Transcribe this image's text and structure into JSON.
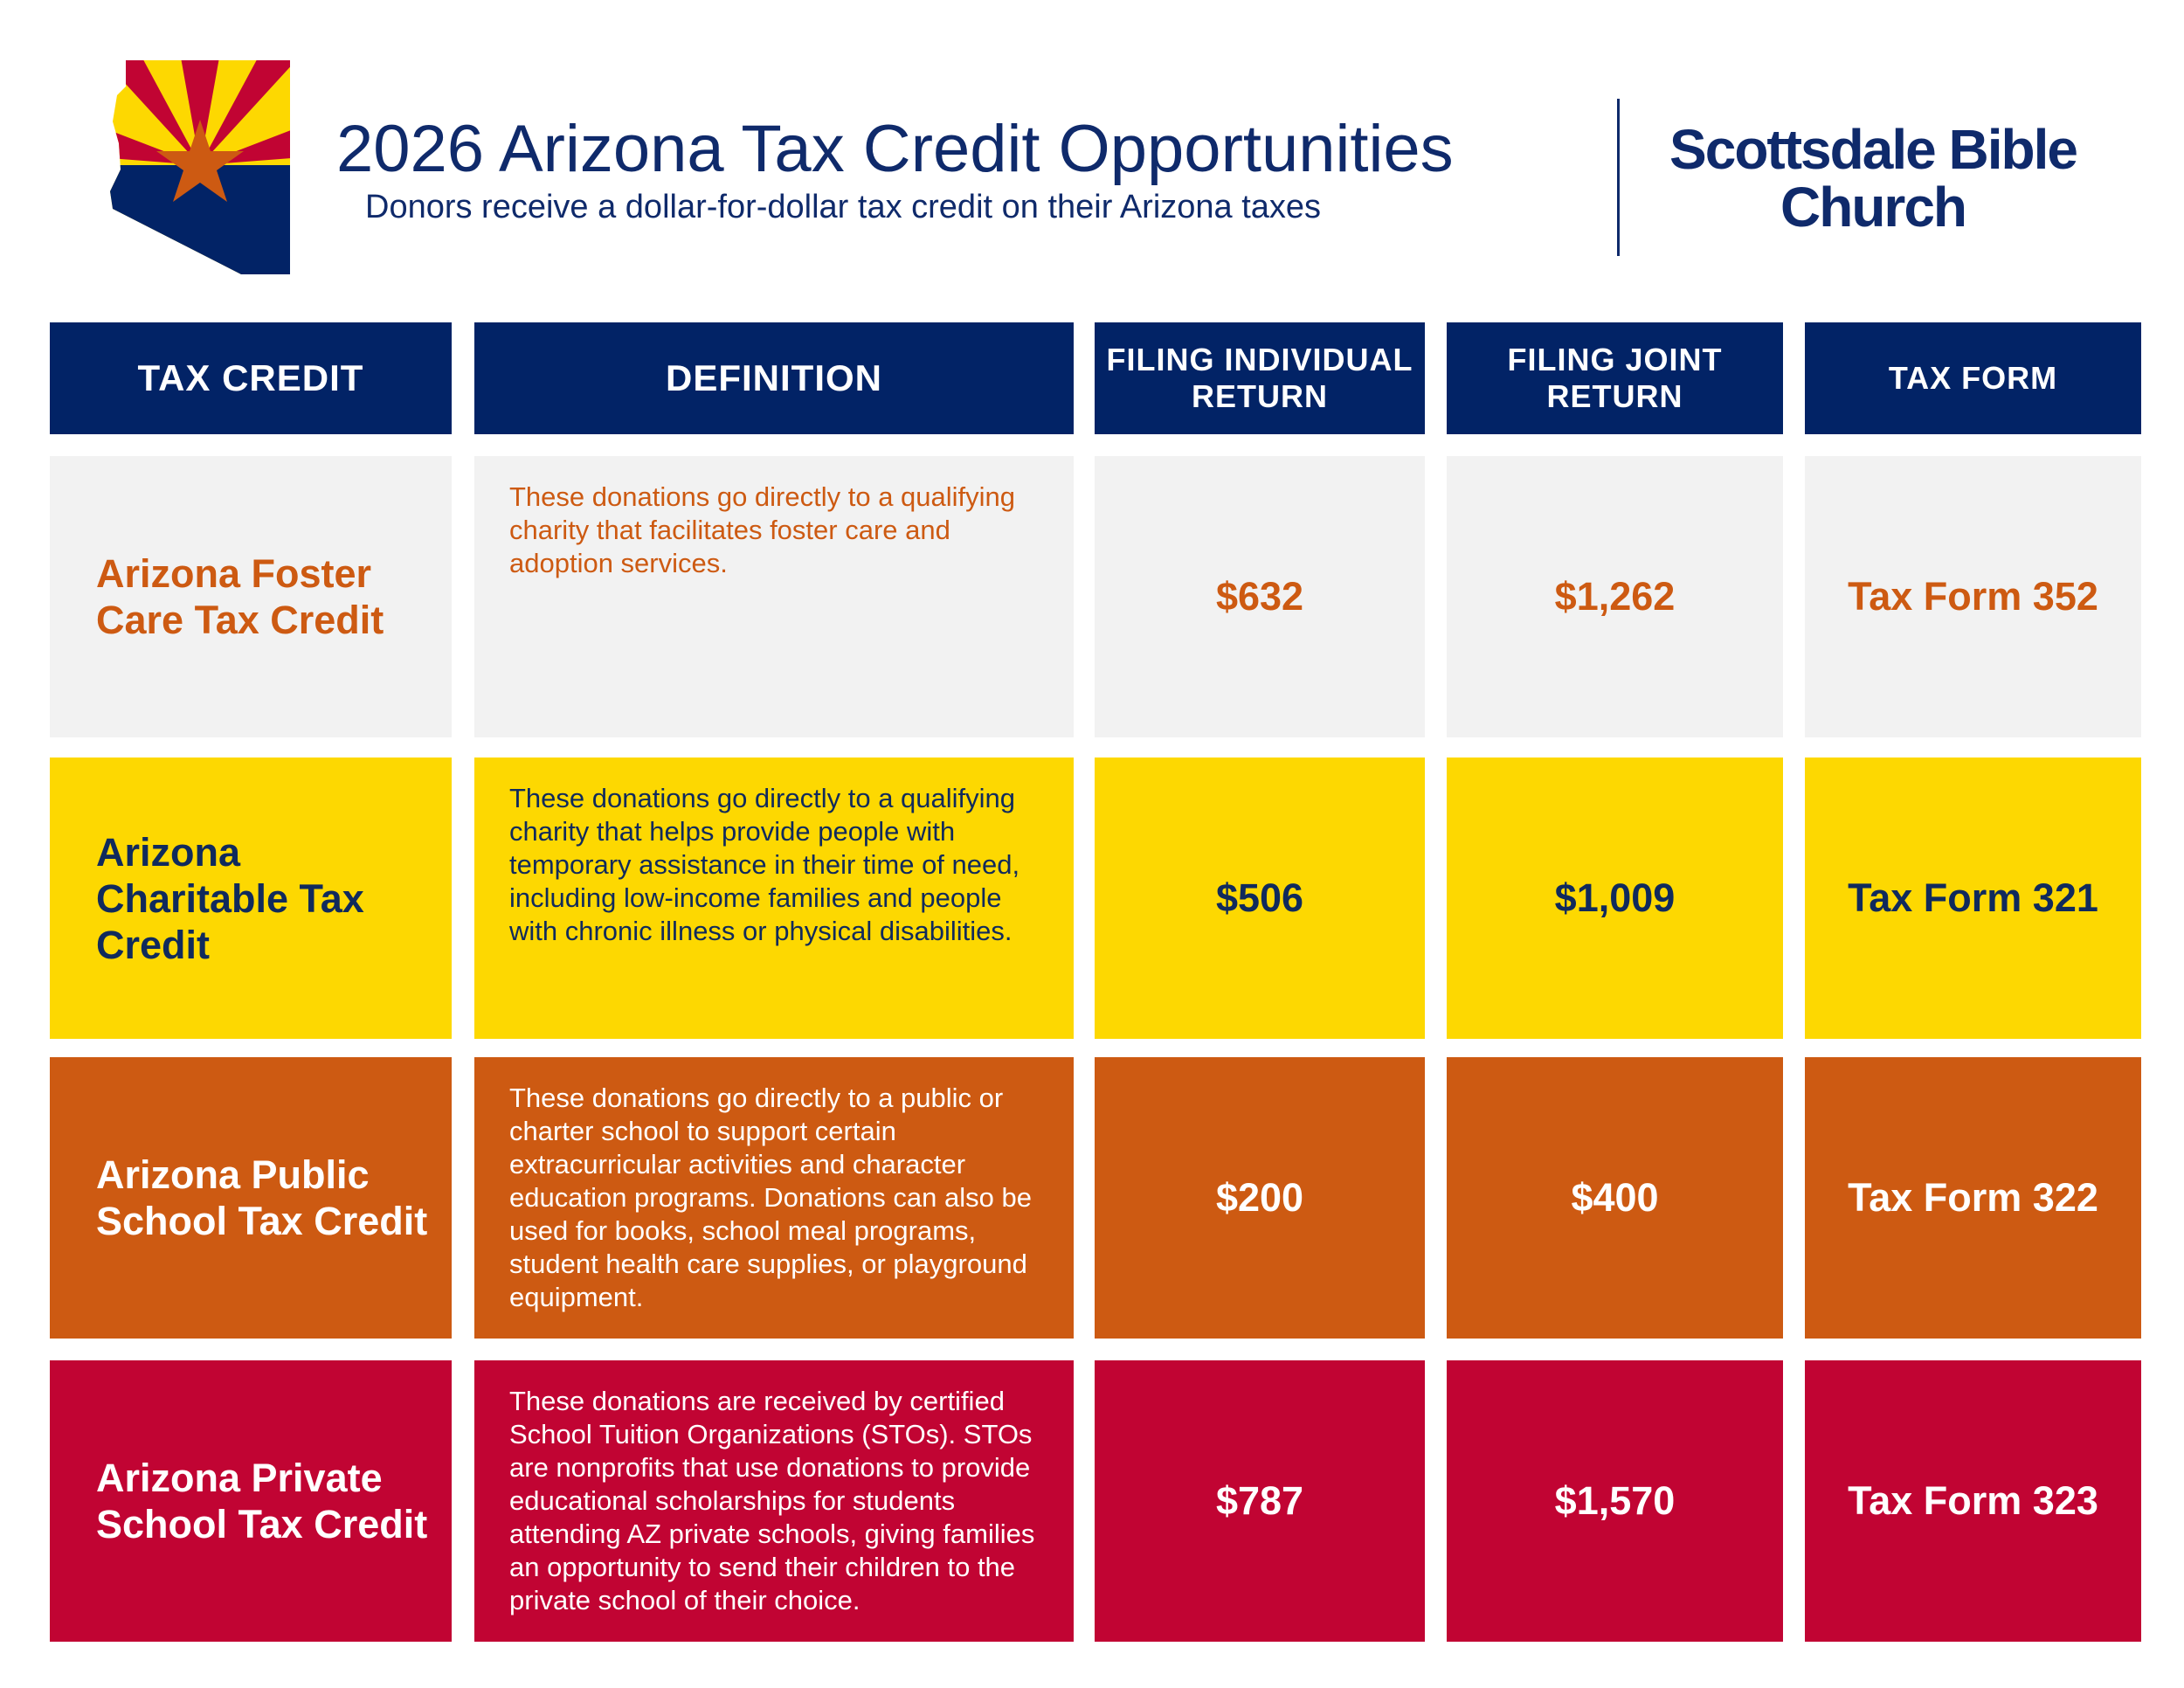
{
  "header": {
    "title": "2026 Arizona Tax Credit Opportunities",
    "subtitle": "Donors receive a dollar-for-dollar tax credit on their Arizona taxes",
    "logo_line1": "Scottsdale Bible",
    "logo_line2": "Church"
  },
  "colors": {
    "navy": "#022366",
    "gray": "#f2f2f2",
    "yellow": "#fdd801",
    "orange": "#cd5a12",
    "red": "#c10433"
  },
  "table": {
    "columns": [
      "TAX CREDIT",
      "DEFINITION",
      "FILING INDIVIDUAL RETURN",
      "FILING JOINT RETURN",
      "TAX FORM"
    ],
    "rows": [
      {
        "name": "Arizona Foster Care Tax Credit",
        "definition": "These donations go directly to a qualifying charity that facilitates foster care and adoption services.",
        "individual": "$632",
        "joint": "$1,262",
        "form": "Tax Form 352"
      },
      {
        "name": "Arizona Charitable Tax Credit",
        "definition": "These donations go directly to a qualifying charity that helps provide people with temporary assistance in their time of need, including low-income families and people with chronic illness or physical disabilities.",
        "individual": "$506",
        "joint": "$1,009",
        "form": "Tax Form 321"
      },
      {
        "name": "Arizona Public School Tax Credit",
        "definition": "These donations go directly to a public or charter school to support certain extracurricular activities and character education programs. Donations can also be used for books, school meal programs, student health care supplies, or playground equipment.",
        "individual": "$200",
        "joint": "$400",
        "form": "Tax Form 322"
      },
      {
        "name": "Arizona Private School Tax Credit",
        "definition": "These donations are received by certified School Tuition Organizations (STOs). STOs are nonprofits that use donations to provide educational scholarships for students attending AZ private schools, giving families an opportunity to send their children to the private school of their choice.",
        "individual": "$787",
        "joint": "$1,570",
        "form": "Tax Form 323"
      }
    ]
  }
}
